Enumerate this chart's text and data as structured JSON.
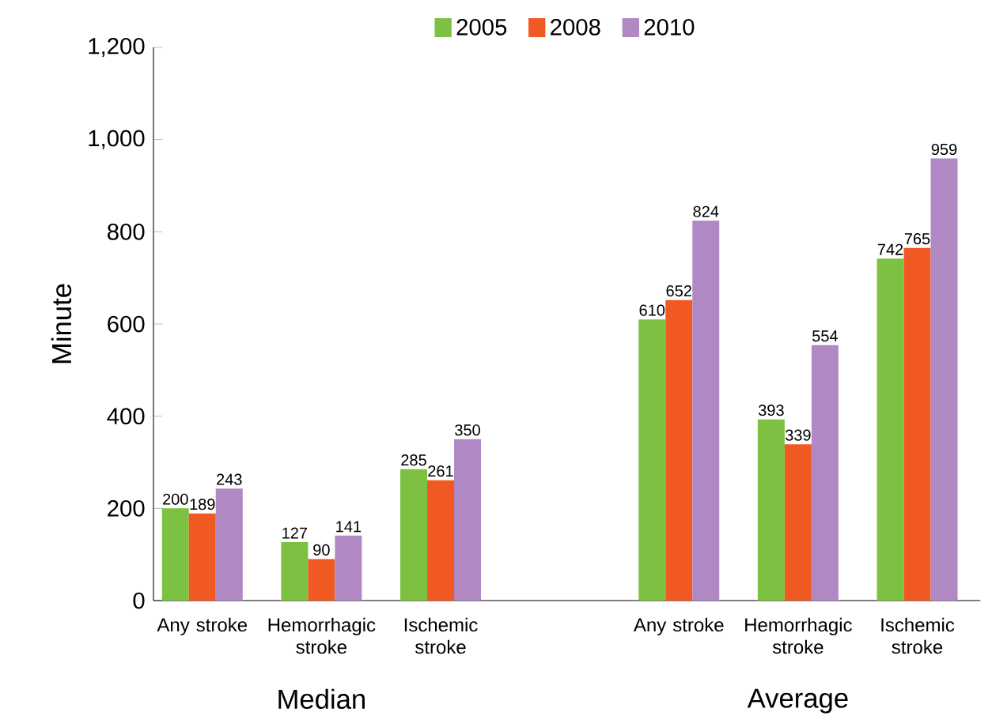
{
  "chart_data": {
    "type": "bar",
    "ylabel": "Minute",
    "categories": [
      "Any stroke",
      "Hemorrhagic stroke",
      "Ischemic stroke",
      null,
      "Any stroke",
      "Hemorrhagic stroke",
      "Ischemic stroke"
    ],
    "series": [
      {
        "name": "2005",
        "color": "#7dc142",
        "values": [
          200,
          127,
          285,
          null,
          610,
          393,
          742
        ]
      },
      {
        "name": "2008",
        "color": "#f05a22",
        "values": [
          189,
          90,
          261,
          null,
          652,
          339,
          765
        ]
      },
      {
        "name": "2010",
        "color": "#b088c4",
        "values": [
          243,
          141,
          350,
          null,
          824,
          554,
          959
        ]
      }
    ],
    "ylim": [
      0,
      1200
    ],
    "yticks": [
      0,
      200,
      400,
      600,
      800,
      {
        "value": 1000,
        "label": "1,000"
      },
      {
        "value": 1200,
        "label": "1,200"
      }
    ],
    "data_labels": true,
    "grid": false,
    "legend": "top",
    "annotations": [
      "Median",
      "Average"
    ]
  }
}
